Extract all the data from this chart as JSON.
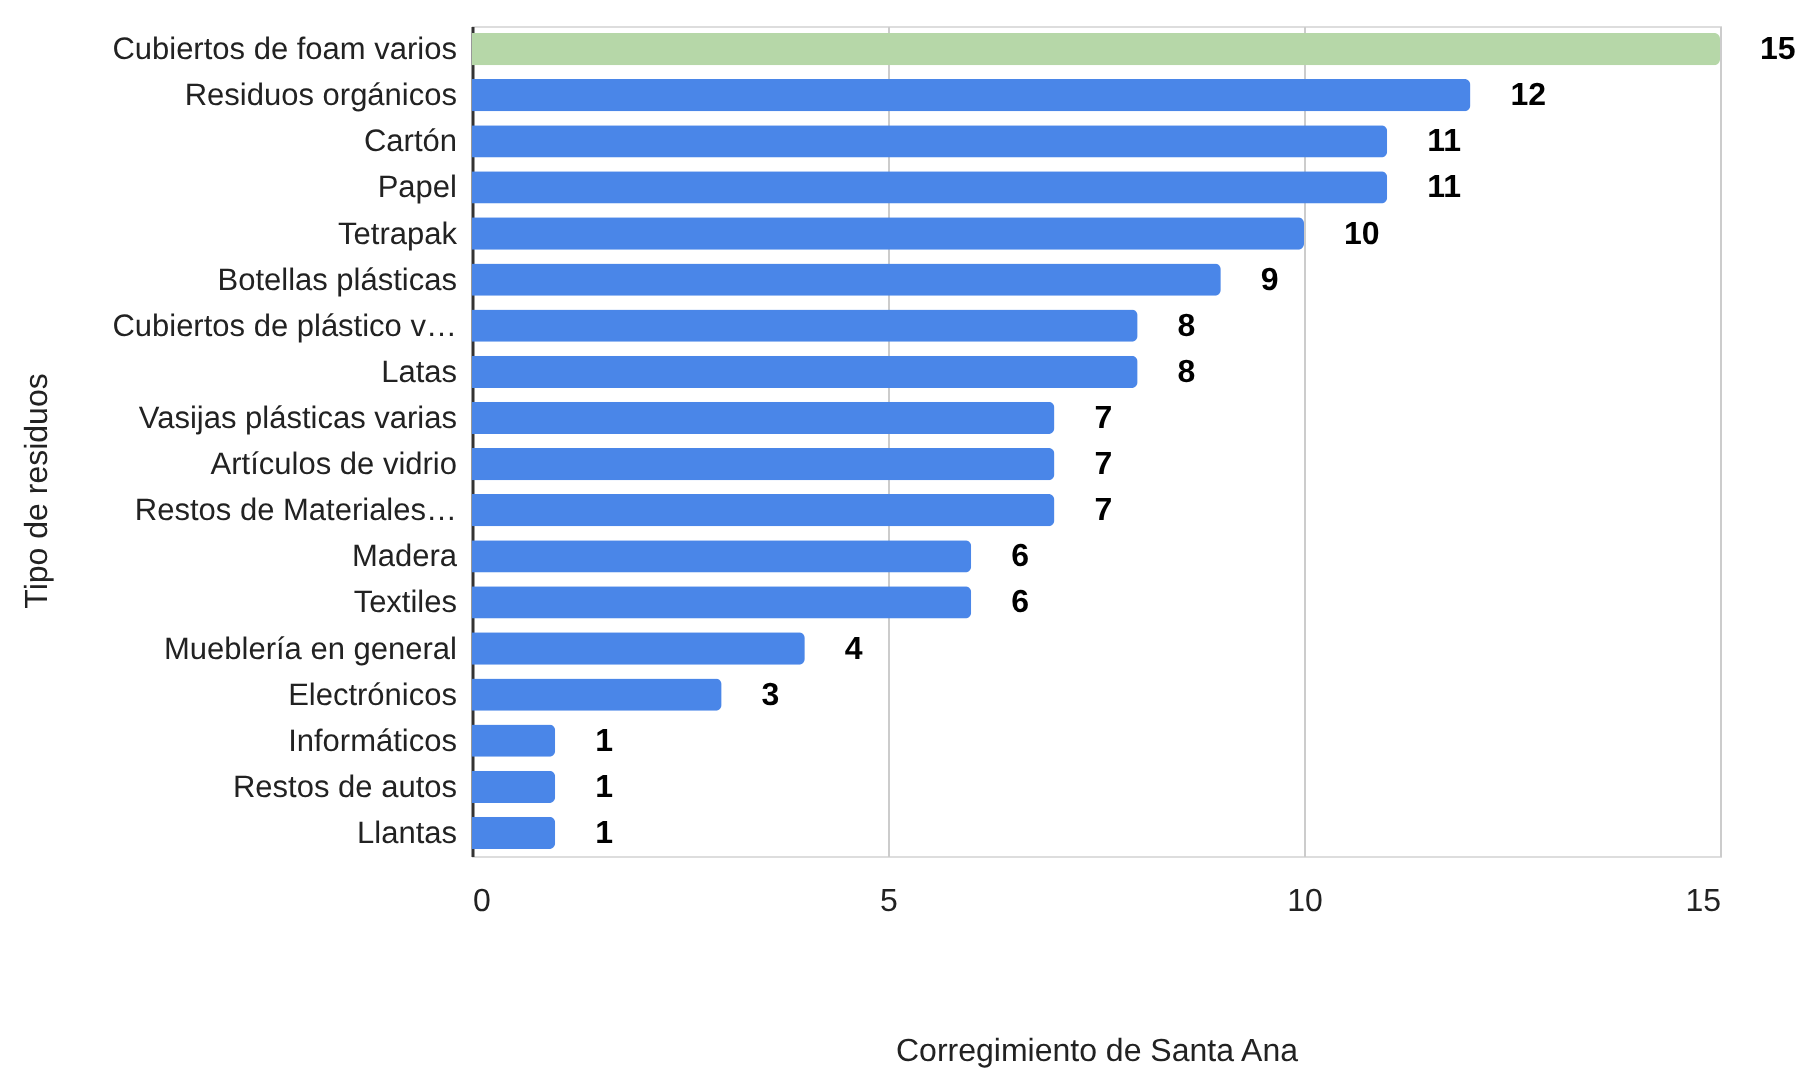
{
  "chart_data": {
    "type": "bar",
    "orientation": "horizontal",
    "xlabel": "Corregimiento de Santa Ana",
    "ylabel": "Tipo de residuos",
    "categories": [
      "Cubiertos de foam varios",
      "Residuos orgánicos",
      "Cartón",
      "Papel",
      "Tetrapak",
      "Botellas plásticas",
      "Cubiertos de plástico v…",
      "Latas",
      "Vasijas plásticas varias",
      "Artículos de vidrio",
      "Restos de Materiales…",
      "Madera",
      "Textiles",
      "Mueblería en general",
      "Electrónicos",
      "Informáticos",
      "Restos de autos",
      "Llantas"
    ],
    "values": [
      15,
      12,
      11,
      11,
      10,
      9,
      8,
      8,
      7,
      7,
      7,
      6,
      6,
      4,
      3,
      1,
      1,
      1
    ],
    "colors": [
      "#b6d7a8",
      "#4a86e8",
      "#4a86e8",
      "#4a86e8",
      "#4a86e8",
      "#4a86e8",
      "#4a86e8",
      "#4a86e8",
      "#4a86e8",
      "#4a86e8",
      "#4a86e8",
      "#4a86e8",
      "#4a86e8",
      "#4a86e8",
      "#4a86e8",
      "#4a86e8",
      "#4a86e8",
      "#4a86e8"
    ],
    "xlim": [
      0,
      15
    ],
    "xticks": [
      0,
      5,
      10,
      15
    ],
    "grid": "x",
    "data_labels": true
  }
}
